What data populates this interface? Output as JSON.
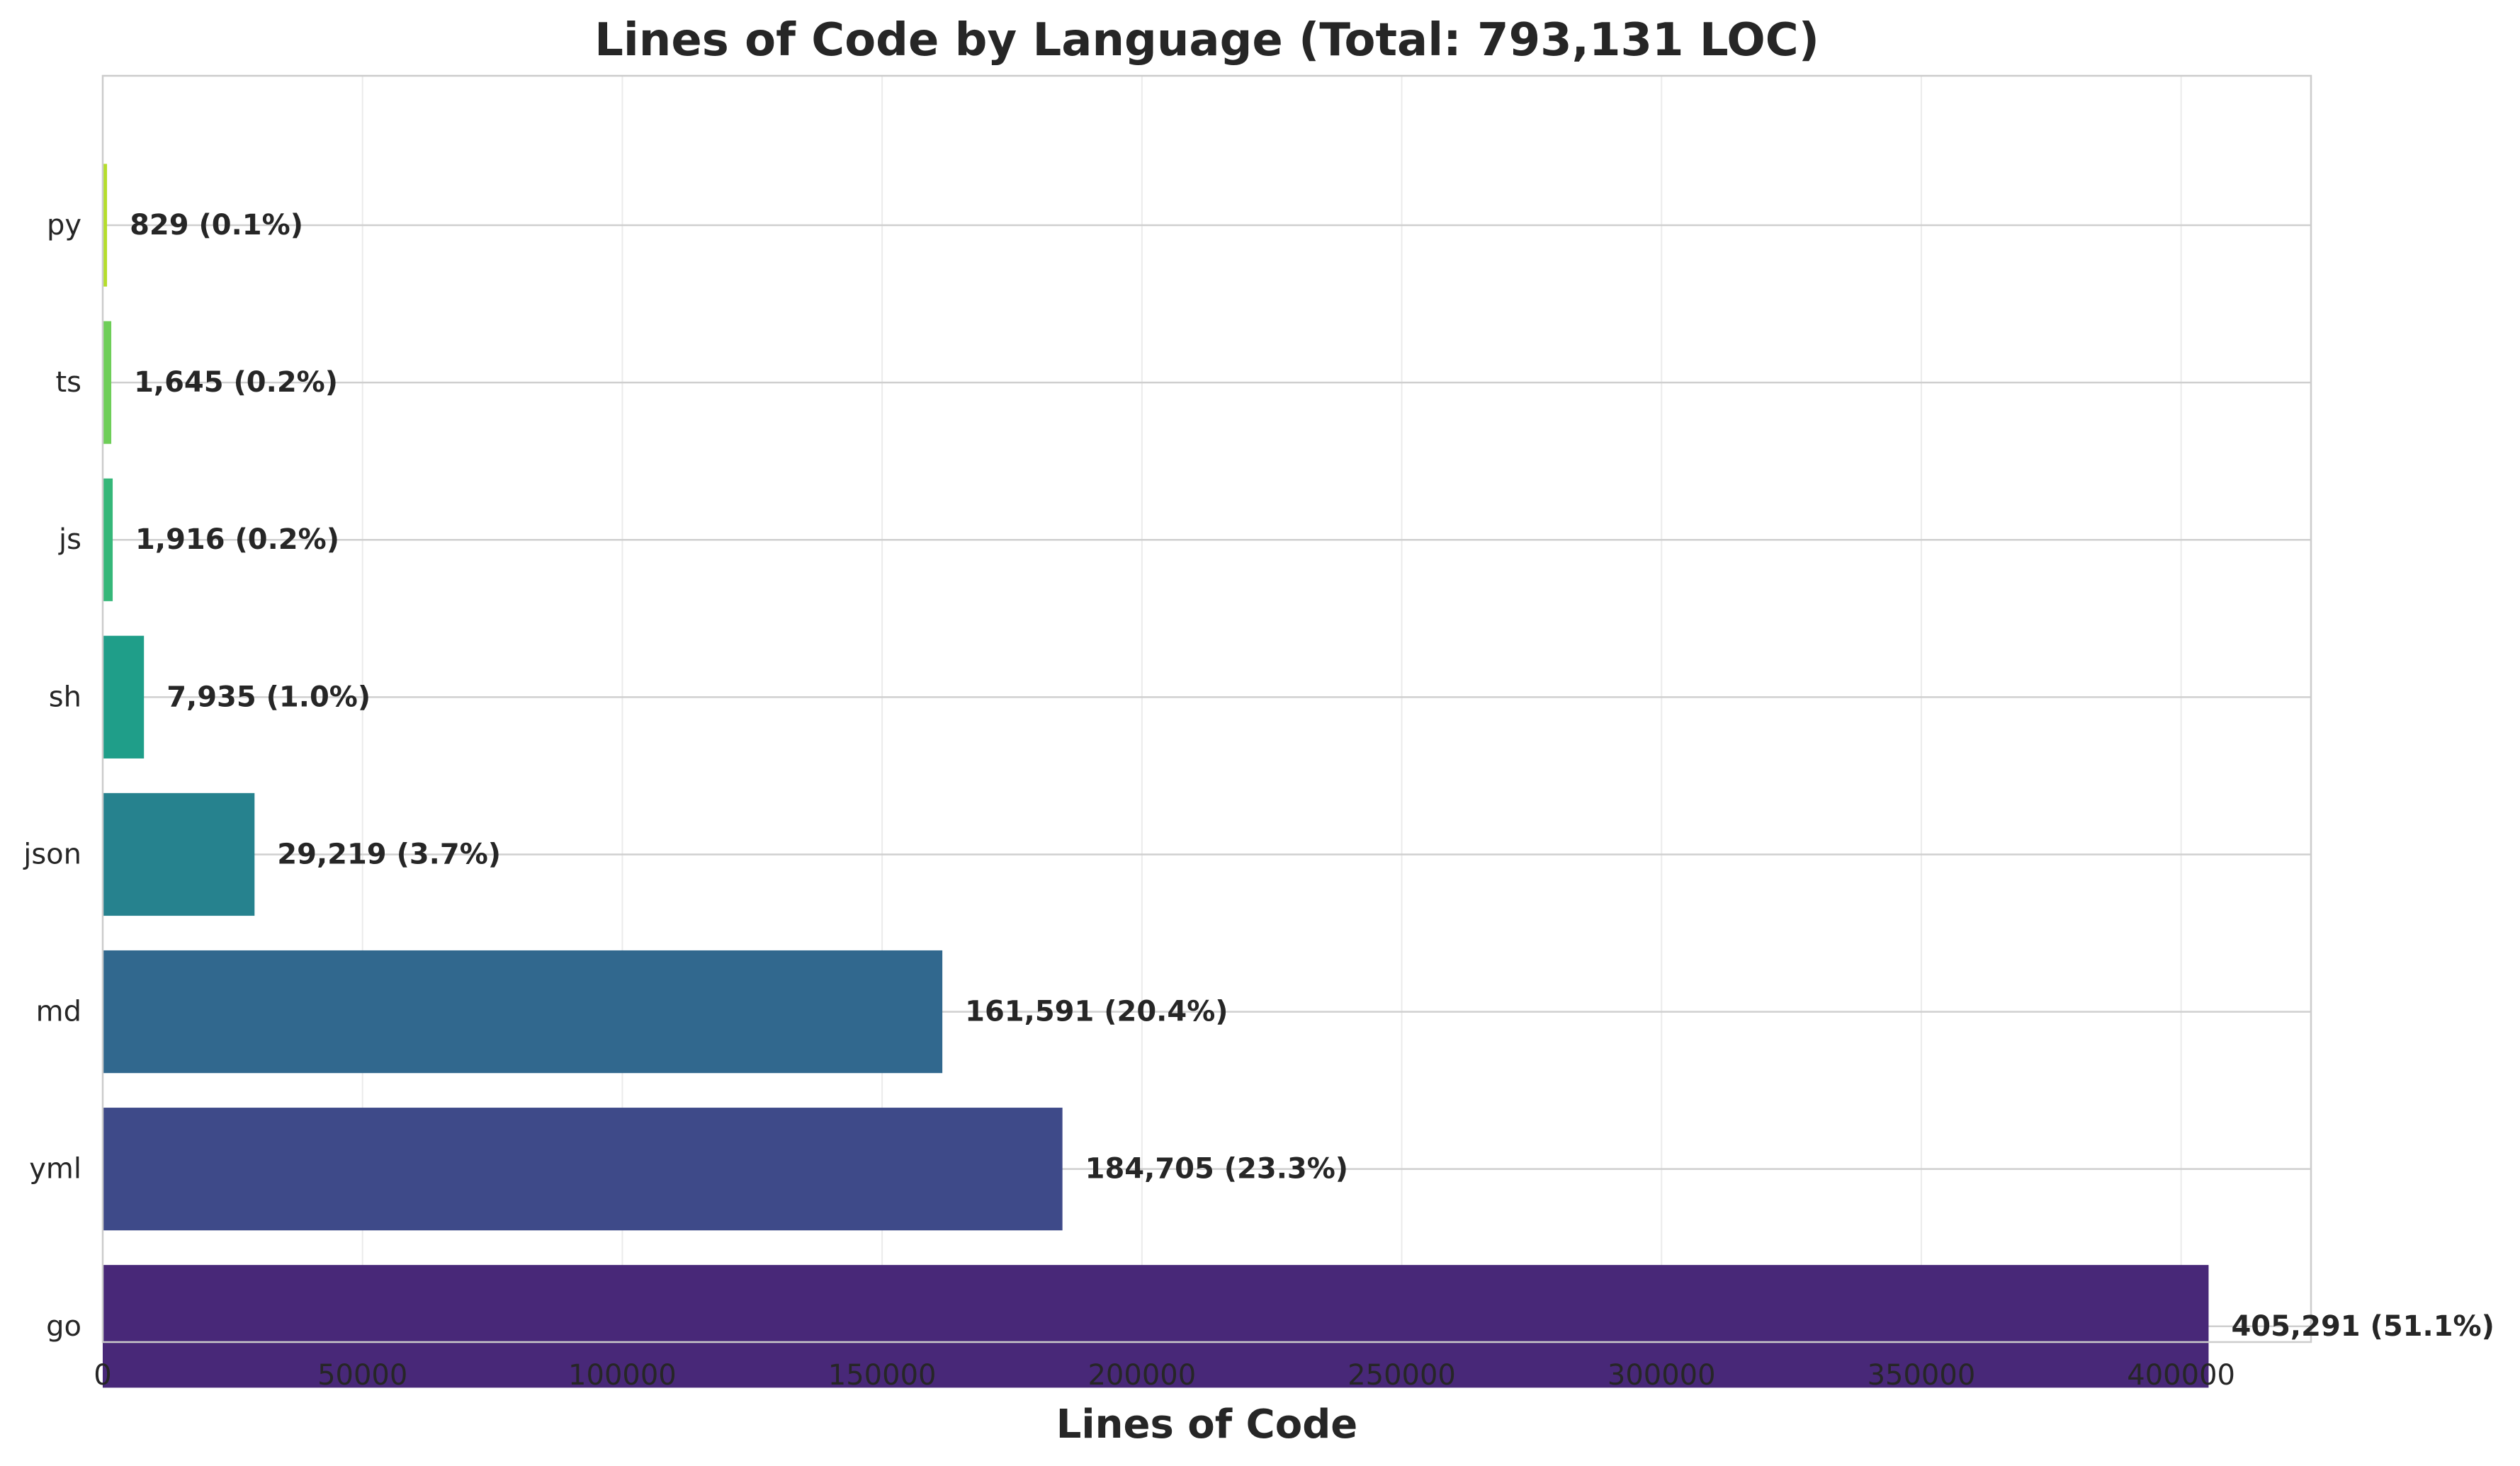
{
  "chart_data": {
    "type": "bar",
    "orientation": "horizontal",
    "title": "Lines of Code by Language (Total: 793,131 LOC)",
    "xlabel": "Lines of Code",
    "ylabel": "",
    "xlim": [
      0,
      425000
    ],
    "xticks": [
      0,
      50000,
      100000,
      150000,
      200000,
      250000,
      300000,
      350000,
      400000
    ],
    "xtick_labels": [
      "0",
      "50000",
      "100000",
      "150000",
      "200000",
      "250000",
      "300000",
      "350000",
      "400000"
    ],
    "grid": true,
    "categories": [
      "go",
      "yml",
      "md",
      "json",
      "sh",
      "js",
      "ts",
      "py"
    ],
    "values": [
      405291,
      184705,
      161591,
      29219,
      7935,
      1916,
      1645,
      829
    ],
    "data_labels": [
      "405,291 (51.1%)",
      "184,705 (23.3%)",
      "161,591 (20.4%)",
      "29,219 (3.7%)",
      "7,935 (1.0%)",
      "1,916 (0.2%)",
      "1,645 (0.2%)",
      "829 (0.1%)"
    ],
    "colors": [
      "#482878",
      "#3e4a89",
      "#31688e",
      "#26828e",
      "#1f9e89",
      "#35b779",
      "#6ece58",
      "#b5de2b"
    ]
  }
}
